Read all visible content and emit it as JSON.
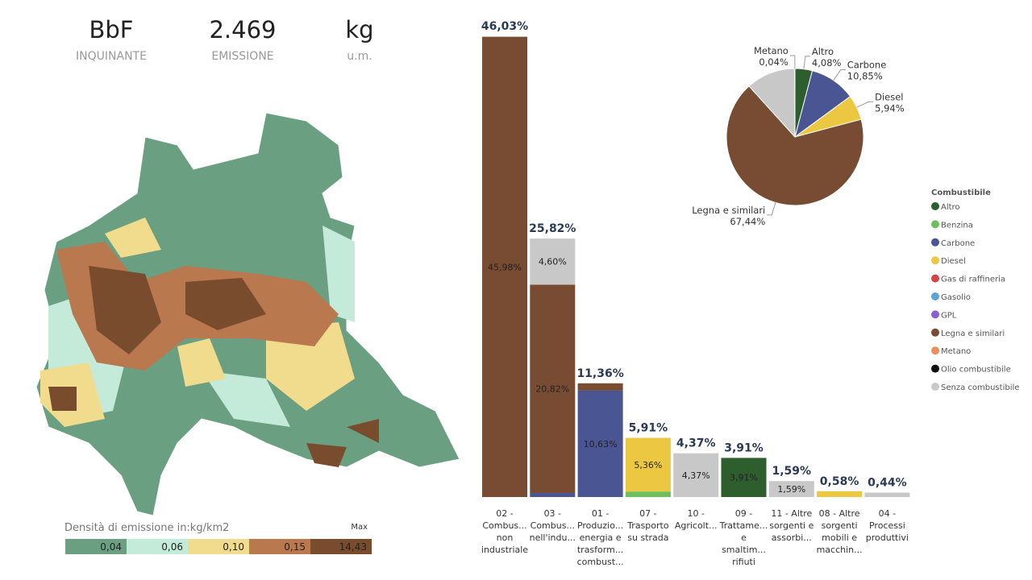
{
  "kpis": [
    {
      "value": "BbF",
      "label": "INQUINANTE"
    },
    {
      "value": "2.469",
      "label": "EMISSIONE"
    },
    {
      "value": "kg",
      "label": "u.m."
    }
  ],
  "map_legend": {
    "title": "Densità di emissione in:kg/km2",
    "max_label": "Max",
    "bins": [
      {
        "label": "0,04",
        "color": "#6a9f82"
      },
      {
        "label": "0,06",
        "color": "#c4ead9"
      },
      {
        "label": "0,10",
        "color": "#f1dc8e"
      },
      {
        "label": "0,15",
        "color": "#b9784e"
      },
      {
        "label": "14,43",
        "color": "#7a4c2e"
      }
    ]
  },
  "chart_data": [
    {
      "type": "stacked_bar",
      "categories": [
        "02 - Combus... non industriale",
        "03 - Combus... nell'indu...",
        "01 - Produzio... energia e trasform... combust...",
        "07 - Trasporto su strada",
        "10 - Agricolt...",
        "09 - Trattame... e smaltim... rifiuti",
        "11 - Altre sorgenti e assorbi...",
        "08 - Altre sorgenti mobili e macchin...",
        "04 - Processi produttivi"
      ],
      "totals": [
        46.03,
        25.82,
        11.36,
        5.91,
        4.37,
        3.91,
        1.59,
        0.58,
        0.44
      ],
      "total_labels": [
        "46,03%",
        "25,82%",
        "11,36%",
        "5,91%",
        "4,37%",
        "3,91%",
        "1,59%",
        "0,58%",
        "0,44%"
      ],
      "legend_title": "Combustibile",
      "series": [
        {
          "name": "Altro",
          "color": "#2e5d2e",
          "values": [
            null,
            null,
            null,
            null,
            null,
            3.91,
            null,
            null,
            null
          ],
          "value_labels": [
            null,
            null,
            null,
            null,
            null,
            "3,91%",
            null,
            null,
            null
          ]
        },
        {
          "name": "Benzina",
          "color": "#6cbf5b",
          "values": [
            null,
            null,
            null,
            0.55,
            null,
            null,
            null,
            null,
            null
          ],
          "value_labels": [
            null,
            null,
            null,
            null,
            null,
            null,
            null,
            null,
            null
          ]
        },
        {
          "name": "Carbone",
          "color": "#4a5593",
          "values": [
            null,
            0.4,
            10.63,
            null,
            null,
            null,
            null,
            null,
            null
          ],
          "value_labels": [
            null,
            null,
            "10,63%",
            null,
            null,
            null,
            null,
            null,
            null
          ]
        },
        {
          "name": "Diesel",
          "color": "#ecc842",
          "values": [
            null,
            null,
            null,
            5.36,
            null,
            null,
            null,
            0.58,
            null
          ],
          "value_labels": [
            null,
            null,
            null,
            "5,36%",
            null,
            null,
            null,
            null,
            null
          ]
        },
        {
          "name": "Gas di raffineria",
          "color": "#d64545",
          "values": [
            null,
            null,
            null,
            null,
            null,
            null,
            null,
            null,
            null
          ],
          "value_labels": [
            null,
            null,
            null,
            null,
            null,
            null,
            null,
            null,
            null
          ]
        },
        {
          "name": "Gasolio",
          "color": "#5ba3d9",
          "values": [
            null,
            null,
            null,
            null,
            null,
            null,
            null,
            null,
            null
          ],
          "value_labels": [
            null,
            null,
            null,
            null,
            null,
            null,
            null,
            null,
            null
          ]
        },
        {
          "name": "GPL",
          "color": "#8b5fd4",
          "values": [
            null,
            null,
            null,
            null,
            null,
            null,
            null,
            null,
            null
          ],
          "value_labels": [
            null,
            null,
            null,
            null,
            null,
            null,
            null,
            null,
            null
          ]
        },
        {
          "name": "Legna e similari",
          "color": "#774c32",
          "values": [
            45.98,
            20.82,
            0.73,
            null,
            null,
            null,
            null,
            null,
            null
          ],
          "value_labels": [
            "45,98%",
            "20,82%",
            null,
            null,
            null,
            null,
            null,
            null,
            null
          ]
        },
        {
          "name": "Metano",
          "color": "#ee8f5a",
          "values": [
            null,
            null,
            null,
            null,
            null,
            null,
            null,
            null,
            null
          ],
          "value_labels": [
            null,
            null,
            null,
            null,
            null,
            null,
            null,
            null,
            null
          ]
        },
        {
          "name": "Olio combustibile",
          "color": "#111111",
          "values": [
            null,
            null,
            null,
            null,
            null,
            null,
            null,
            null,
            null
          ],
          "value_labels": [
            null,
            null,
            null,
            null,
            null,
            null,
            null,
            null,
            null
          ]
        },
        {
          "name": "Senza combustibile",
          "color": "#c8c8c8",
          "values": [
            null,
            4.6,
            null,
            null,
            4.37,
            null,
            1.59,
            null,
            0.44
          ],
          "value_labels": [
            null,
            "4,60%",
            null,
            null,
            "4,37%",
            null,
            "1,59%",
            null,
            null
          ]
        }
      ]
    },
    {
      "type": "pie",
      "categories": [
        "Altro",
        "Carbone",
        "Diesel",
        "Legna e similari",
        null,
        "Metano"
      ],
      "values": [
        4.08,
        10.85,
        5.94,
        67.44,
        11.65,
        0.04
      ],
      "value_labels": [
        "4,08%",
        "10,85%",
        "5,94%",
        "67,44%",
        null,
        "0,04%"
      ],
      "colors": [
        "#2e5d2e",
        "#4a5593",
        "#ecc842",
        "#774c32",
        "#c8c8c8",
        "#ee8f5a"
      ]
    }
  ]
}
